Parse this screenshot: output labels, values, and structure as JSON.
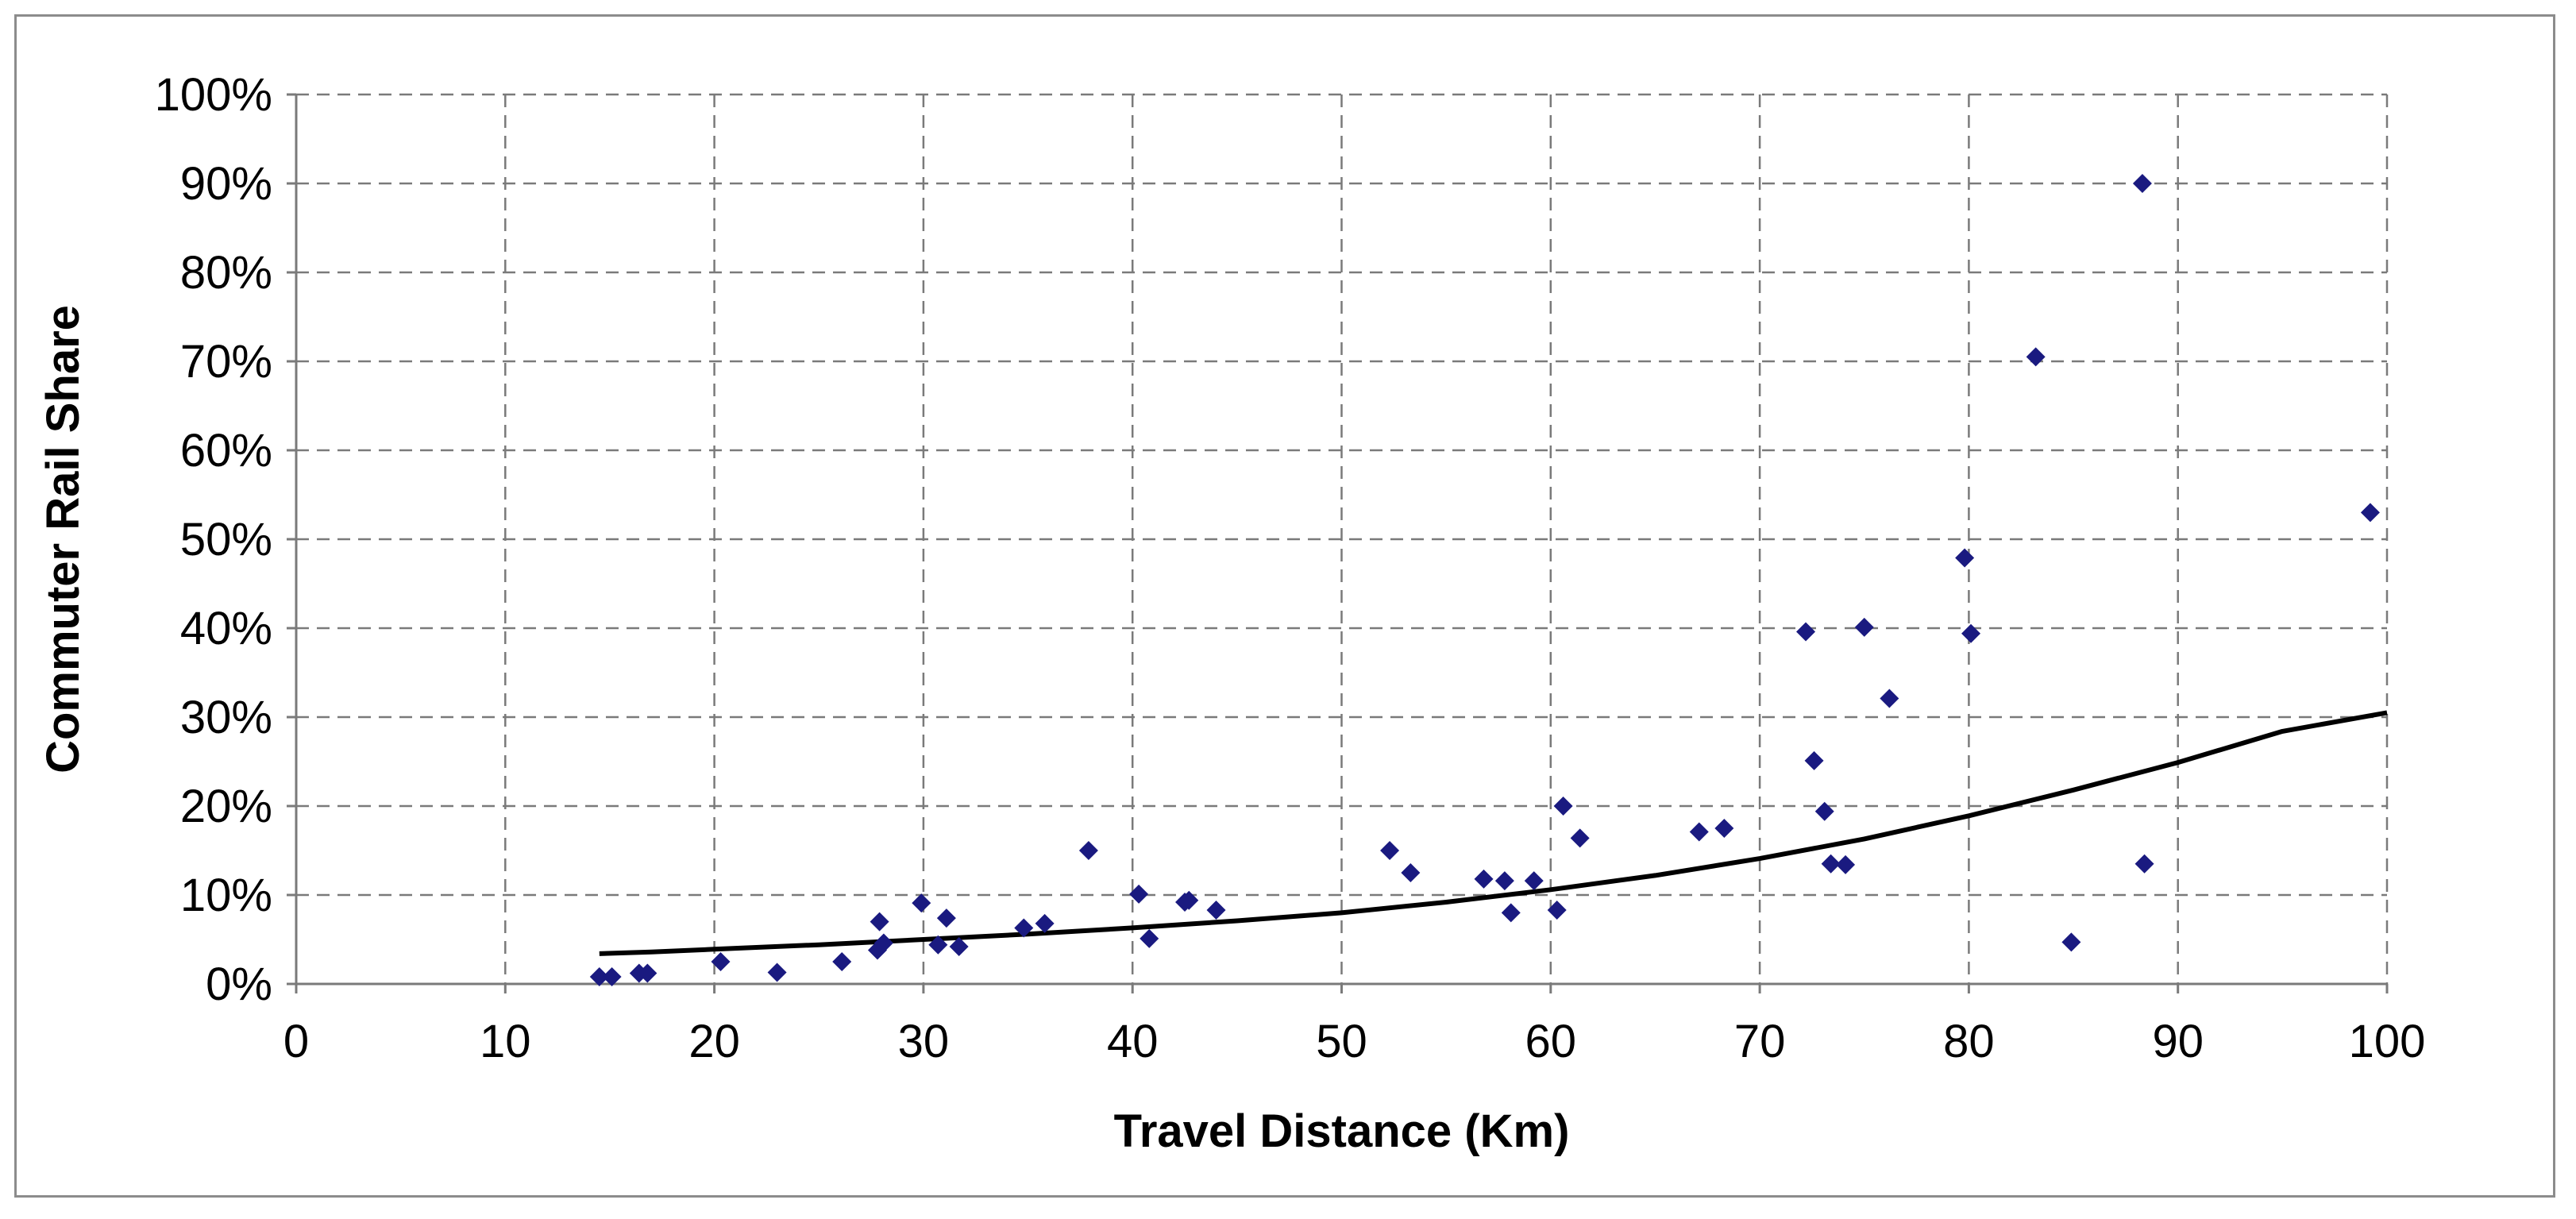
{
  "chart_data": {
    "type": "scatter",
    "title": "",
    "xlabel": "Travel Distance (Km)",
    "ylabel": "Commuter Rail Share",
    "xlim": [
      0,
      100
    ],
    "ylim": [
      0,
      100
    ],
    "x_ticks": [
      0,
      10,
      20,
      30,
      40,
      50,
      60,
      70,
      80,
      90,
      100
    ],
    "x_tick_labels": [
      "0",
      "10",
      "20",
      "30",
      "40",
      "50",
      "60",
      "70",
      "80",
      "90",
      "100"
    ],
    "y_ticks": [
      0,
      10,
      20,
      30,
      40,
      50,
      60,
      70,
      80,
      90,
      100
    ],
    "y_tick_labels": [
      "0%",
      "10%",
      "20%",
      "30%",
      "40%",
      "50%",
      "60%",
      "70%",
      "80%",
      "90%",
      "100%"
    ],
    "grid": true,
    "grid_style": "dashed",
    "legend": "none",
    "series": [
      {
        "kind": "scatter",
        "marker": "diamond",
        "color": "#1a1a80",
        "points": [
          [
            14.5,
            0.8
          ],
          [
            15.1,
            0.8
          ],
          [
            16.4,
            1.2
          ],
          [
            16.8,
            1.2
          ],
          [
            20.3,
            2.5
          ],
          [
            23.0,
            1.3
          ],
          [
            26.1,
            2.5
          ],
          [
            27.8,
            3.8
          ],
          [
            27.9,
            7.0
          ],
          [
            28.1,
            4.6
          ],
          [
            29.9,
            9.1
          ],
          [
            30.7,
            4.4
          ],
          [
            31.1,
            7.4
          ],
          [
            31.7,
            4.2
          ],
          [
            34.8,
            6.3
          ],
          [
            35.8,
            6.8
          ],
          [
            37.9,
            15.0
          ],
          [
            40.3,
            10.1
          ],
          [
            40.8,
            5.1
          ],
          [
            42.5,
            9.2
          ],
          [
            42.7,
            9.4
          ],
          [
            44.0,
            8.3
          ],
          [
            52.3,
            15.0
          ],
          [
            53.3,
            12.5
          ],
          [
            56.8,
            11.8
          ],
          [
            57.8,
            11.6
          ],
          [
            58.1,
            8.0
          ],
          [
            59.2,
            11.6
          ],
          [
            60.3,
            8.3
          ],
          [
            60.6,
            20.0
          ],
          [
            61.4,
            16.4
          ],
          [
            67.1,
            17.1
          ],
          [
            68.3,
            17.5
          ],
          [
            72.2,
            39.6
          ],
          [
            72.6,
            25.1
          ],
          [
            73.1,
            19.4
          ],
          [
            73.4,
            13.5
          ],
          [
            74.1,
            13.4
          ],
          [
            75.0,
            40.1
          ],
          [
            76.2,
            32.1
          ],
          [
            79.8,
            47.9
          ],
          [
            80.1,
            39.4
          ],
          [
            83.2,
            70.5
          ],
          [
            84.9,
            4.7
          ],
          [
            88.3,
            90.0
          ],
          [
            88.4,
            13.5
          ],
          [
            99.2,
            53.0
          ]
        ]
      },
      {
        "kind": "line",
        "color": "#000000",
        "points": [
          [
            14.5,
            3.4
          ],
          [
            17,
            3.6
          ],
          [
            20,
            3.9
          ],
          [
            25,
            4.4
          ],
          [
            30,
            5.0
          ],
          [
            35,
            5.6
          ],
          [
            40,
            6.3
          ],
          [
            45,
            7.1
          ],
          [
            50,
            8.0
          ],
          [
            55,
            9.2
          ],
          [
            60,
            10.6
          ],
          [
            65,
            12.2
          ],
          [
            70,
            14.1
          ],
          [
            75,
            16.3
          ],
          [
            80,
            18.9
          ],
          [
            85,
            21.8
          ],
          [
            90,
            24.9
          ],
          [
            95,
            28.4
          ],
          [
            100,
            30.5
          ]
        ]
      }
    ]
  }
}
